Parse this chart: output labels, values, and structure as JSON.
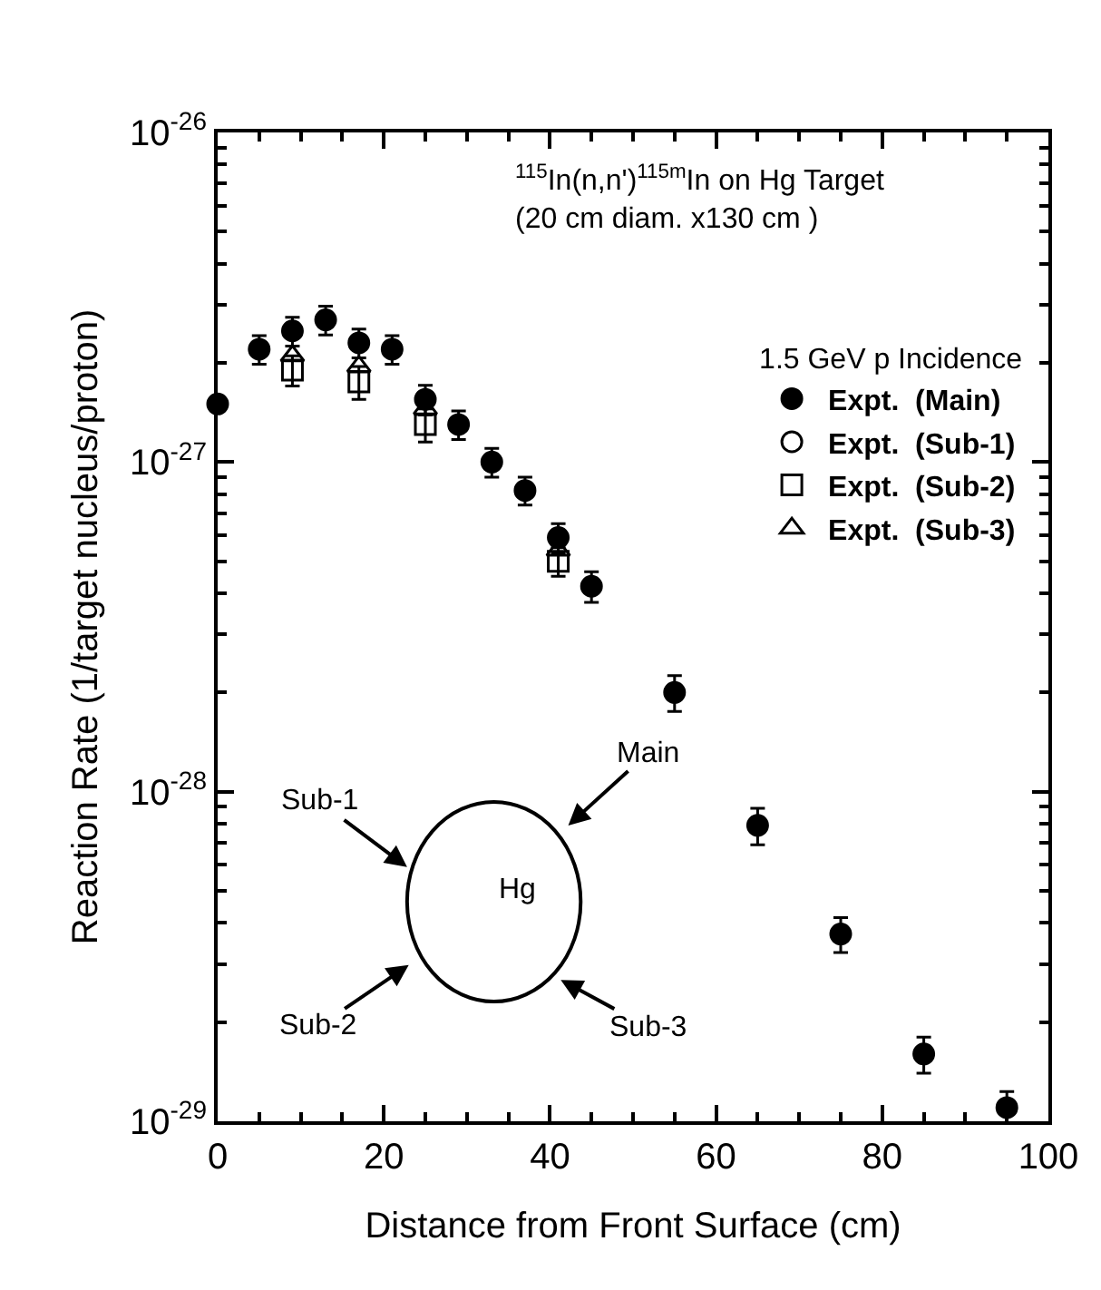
{
  "chart_data": {
    "type": "scatter",
    "xlabel": "Distance from Front Surface (cm)",
    "ylabel": "Reaction Rate (1/target nucleus/proton)",
    "legend_title": "1.5 GeV p Incidence",
    "annotations": [
      "$^{115}$In(n,n')$^{115m}$In on Hg Target\n(20 cm diam. x130 cm )",
      "Sub-1",
      "Main",
      "Hg",
      "Sub-2",
      "Sub-3"
    ],
    "series": [
      {
        "name": "Expt.  (Main)",
        "color": "#000000",
        "marker": "circle",
        "x": [
          0,
          5,
          9,
          13,
          17,
          21,
          25,
          29,
          33,
          37,
          41,
          45,
          55,
          65,
          75,
          85,
          95
        ],
        "values": [
          1.5e-27,
          2.2e-27,
          2.5e-27,
          2.7e-27,
          2.3e-27,
          2.2e-27,
          1.55e-27,
          1.3e-27,
          1e-27,
          8.2e-28,
          5.9e-28,
          4.2e-28,
          2e-28,
          7.9e-29,
          3.7e-29,
          1.6e-29,
          1.1e-29
        ],
        "errors": [
          null,
          2.2e-28,
          2.5e-28,
          2.7e-28,
          2.3e-28,
          2.2e-28,
          1.6e-28,
          1.3e-28,
          1e-28,
          8e-29,
          6e-29,
          4.5e-29,
          2.5e-29,
          1e-29,
          4.5e-30,
          2e-30,
          1.3e-30
        ]
      },
      {
        "name": "Expt.  (Sub-1)",
        "color": "#000000",
        "marker": "circle-open"
      },
      {
        "name": "Expt.  (Sub-2)",
        "color": "#000000",
        "marker": "square-open",
        "x": [
          9,
          17,
          25,
          41
        ],
        "values": [
          1.9e-27,
          1.75e-27,
          1.3e-27,
          5e-28
        ],
        "errors": [
          2e-28,
          2e-28,
          1.5e-28,
          5e-29
        ]
      },
      {
        "name": "Expt.  (Sub-3)",
        "color": "#000000",
        "marker": "triangle-open",
        "x": [
          9,
          17,
          25,
          41
        ],
        "values": [
          2.1e-27,
          1.95e-27,
          1.45e-27,
          5.4e-28
        ]
      }
    ],
    "xlim": [
      0,
      100
    ],
    "xticks": [
      0,
      20,
      40,
      60,
      80,
      100
    ],
    "ylim": [
      1e-29,
      1e-26
    ],
    "log": "y",
    "yticks": [
      {
        "value": 1e-29,
        "label": "10$^{-29}$"
      },
      {
        "value": 1e-28,
        "label": "10$^{-28}$"
      },
      {
        "value": 1e-27,
        "label": "10$^{-27}$"
      },
      {
        "value": 1e-26,
        "label": "10$^{-26}$"
      }
    ],
    "legend": "top right"
  }
}
